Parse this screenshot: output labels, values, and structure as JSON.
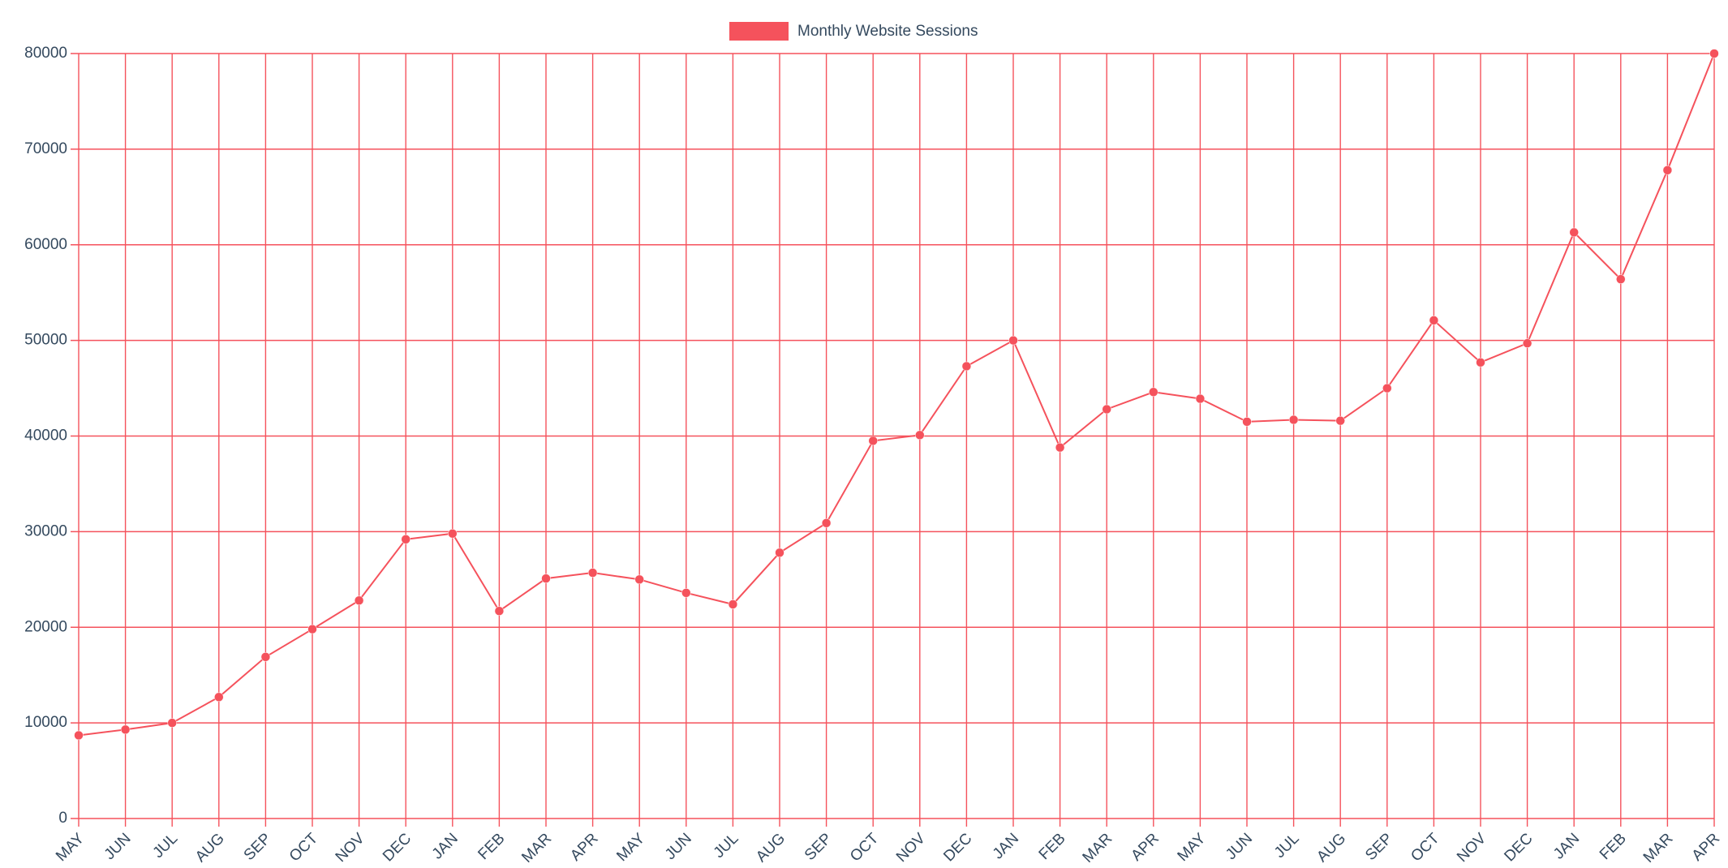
{
  "chart_data": {
    "type": "line",
    "categories": [
      "MAY",
      "JUN",
      "JUL",
      "AUG",
      "SEP",
      "OCT",
      "NOV",
      "DEC",
      "JAN",
      "FEB",
      "MAR",
      "APR",
      "MAY",
      "JUN",
      "JUL",
      "AUG",
      "SEP",
      "OCT",
      "NOV",
      "DEC",
      "JAN",
      "FEB",
      "MAR",
      "APR",
      "MAY",
      "JUN",
      "JUL",
      "AUG",
      "SEP",
      "OCT",
      "NOV",
      "DEC",
      "JAN",
      "FEB",
      "MAR",
      "APR"
    ],
    "series": [
      {
        "name": "Monthly Website Sessions",
        "color": "#f5525c",
        "values": [
          8700,
          9300,
          10000,
          12700,
          16900,
          19800,
          22800,
          29200,
          29800,
          21700,
          25100,
          25700,
          25000,
          23600,
          22400,
          27800,
          30900,
          39500,
          40100,
          47300,
          50000,
          38800,
          42800,
          44600,
          43900,
          41500,
          41700,
          41600,
          45000,
          52100,
          47700,
          49700,
          61300,
          56400,
          67800,
          80000
        ]
      }
    ],
    "ylim": [
      0,
      80000
    ],
    "yticks": [
      0,
      10000,
      20000,
      30000,
      40000,
      50000,
      60000,
      70000,
      80000
    ],
    "grid": true,
    "legend": "top"
  }
}
